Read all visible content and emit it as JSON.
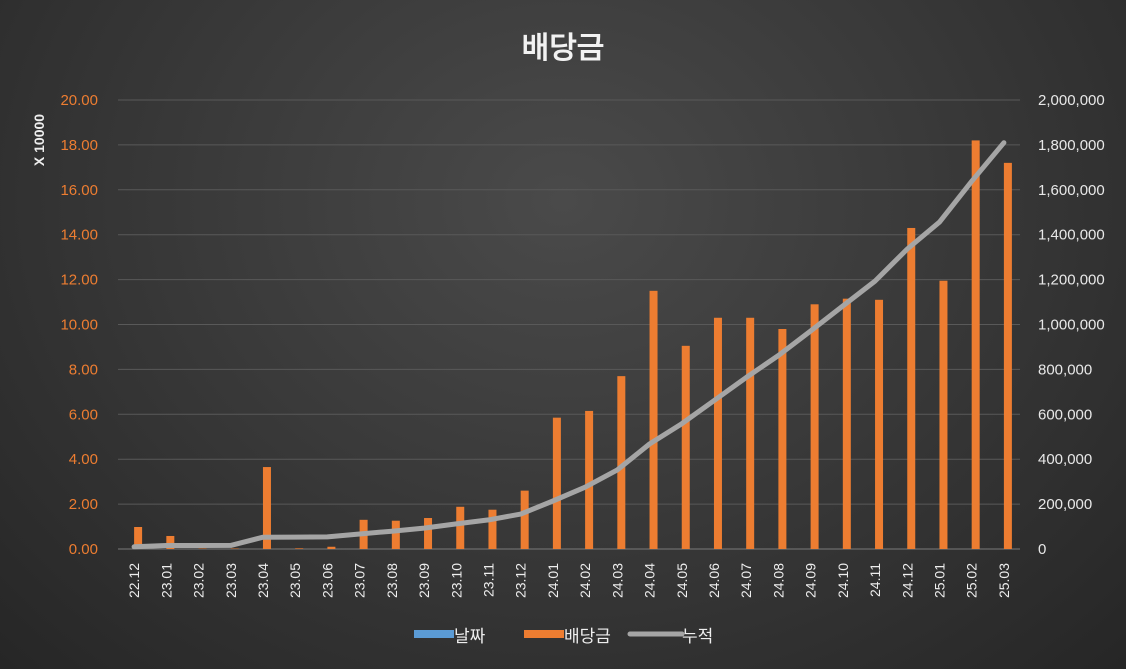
{
  "chart_data": {
    "type": "bar",
    "title": "배당금",
    "left_axis_multiplier_label": "X 10000",
    "categories": [
      "22.12",
      "23.01",
      "23.02",
      "23.03",
      "23.04",
      "23.05",
      "23.06",
      "23.07",
      "23.08",
      "23.09",
      "23.10",
      "23.11",
      "23.12",
      "24.01",
      "24.02",
      "24.03",
      "24.04",
      "24.05",
      "24.06",
      "24.07",
      "24.08",
      "24.09",
      "24.10",
      "24.11",
      "24.12",
      "25.01",
      "25.02",
      "25.03"
    ],
    "y_left": {
      "min": 0,
      "max": 20,
      "step": 2,
      "tick_labels": [
        "0.00",
        "2.00",
        "4.00",
        "6.00",
        "8.00",
        "10.00",
        "12.00",
        "14.00",
        "16.00",
        "18.00",
        "20.00"
      ]
    },
    "y_right": {
      "min": 0,
      "max": 2000000,
      "step": 200000,
      "tick_labels": [
        "0",
        "200,000",
        "400,000",
        "600,000",
        "800,000",
        "1,000,000",
        "1,200,000",
        "1,400,000",
        "1,600,000",
        "1,800,000",
        "2,000,000"
      ]
    },
    "series": [
      {
        "name": "날짜",
        "type": "bar",
        "axis": "left",
        "color": "#5b9bd5",
        "values": [
          0,
          0,
          0,
          0,
          0,
          0,
          0,
          0,
          0,
          0,
          0,
          0,
          0,
          0,
          0,
          0,
          0,
          0,
          0,
          0,
          0,
          0,
          0,
          0,
          0,
          0,
          0,
          0
        ]
      },
      {
        "name": "배당금",
        "type": "bar",
        "axis": "left",
        "color": "#ed7d31",
        "values": [
          0.98,
          0.58,
          0.02,
          0.02,
          3.65,
          0.03,
          0.1,
          1.3,
          1.26,
          1.38,
          1.88,
          1.75,
          2.6,
          5.85,
          6.15,
          7.7,
          11.5,
          9.05,
          10.3,
          10.3,
          9.8,
          10.9,
          11.15,
          11.1,
          14.3,
          11.95,
          18.2,
          17.2
        ]
      },
      {
        "name": "누적",
        "type": "line",
        "axis": "right",
        "color": "#a5a5a5",
        "values": [
          9800,
          15600,
          15800,
          16000,
          52500,
          52800,
          53800,
          66800,
          79400,
          93200,
          112000,
          129500,
          155500,
          214000,
          275500,
          352500,
          467500,
          558000,
          661000,
          764000,
          862000,
          971000,
          1082500,
          1193500,
          1336500,
          1456000,
          1638000,
          1810000
        ]
      }
    ],
    "legend_position": "bottom",
    "grid": true
  }
}
